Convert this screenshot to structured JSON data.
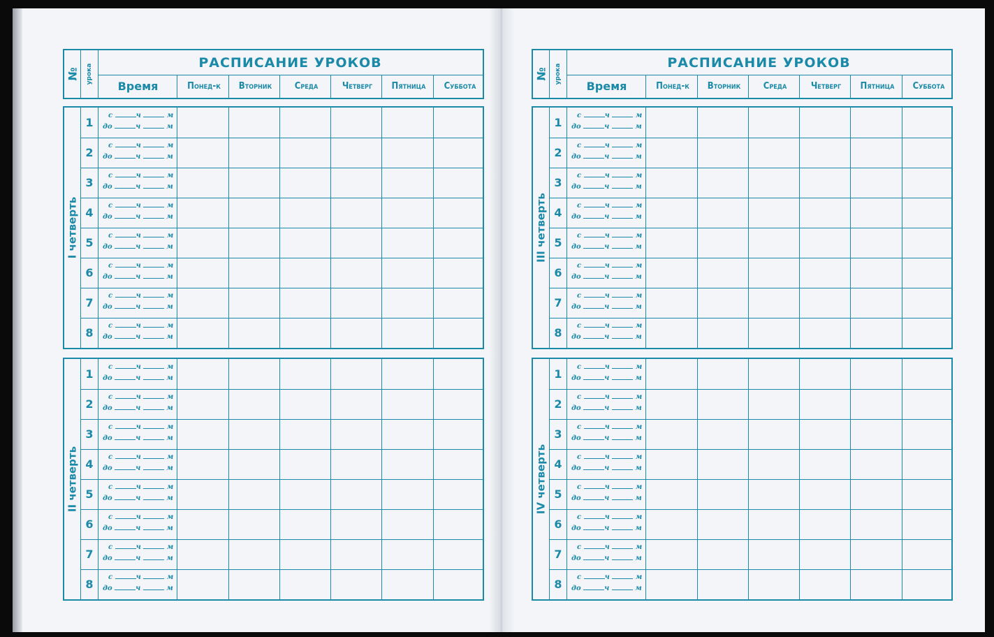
{
  "pages": [
    {
      "title": "РАСПИСАНИЕ УРОКОВ",
      "headers": {
        "num": "№",
        "lesson": "урока",
        "time": "Время",
        "days": [
          "Понед-к",
          "Вторник",
          "Среда",
          "Четверг",
          "Пятница",
          "Суббота"
        ]
      },
      "quarters": [
        {
          "label": "I четверть",
          "lessons": [
            "1",
            "2",
            "3",
            "4",
            "5",
            "6",
            "7",
            "8"
          ]
        },
        {
          "label": "II четверть",
          "lessons": [
            "1",
            "2",
            "3",
            "4",
            "5",
            "6",
            "7",
            "8"
          ]
        }
      ]
    },
    {
      "title": "РАСПИСАНИЕ УРОКОВ",
      "headers": {
        "num": "№",
        "lesson": "урока",
        "time": "Время",
        "days": [
          "Понед-к",
          "Вторник",
          "Среда",
          "Четверг",
          "Пятница",
          "Суббота"
        ]
      },
      "quarters": [
        {
          "label": "III четверть",
          "lessons": [
            "1",
            "2",
            "3",
            "4",
            "5",
            "6",
            "7",
            "8"
          ]
        },
        {
          "label": "IV четверть",
          "lessons": [
            "1",
            "2",
            "3",
            "4",
            "5",
            "6",
            "7",
            "8"
          ]
        }
      ]
    }
  ],
  "time_template": {
    "from": "с",
    "to": "до",
    "hours": "ч",
    "minutes": "м"
  },
  "colors": {
    "ink": "#1b8aa8",
    "paper": "#f3f5f8"
  }
}
